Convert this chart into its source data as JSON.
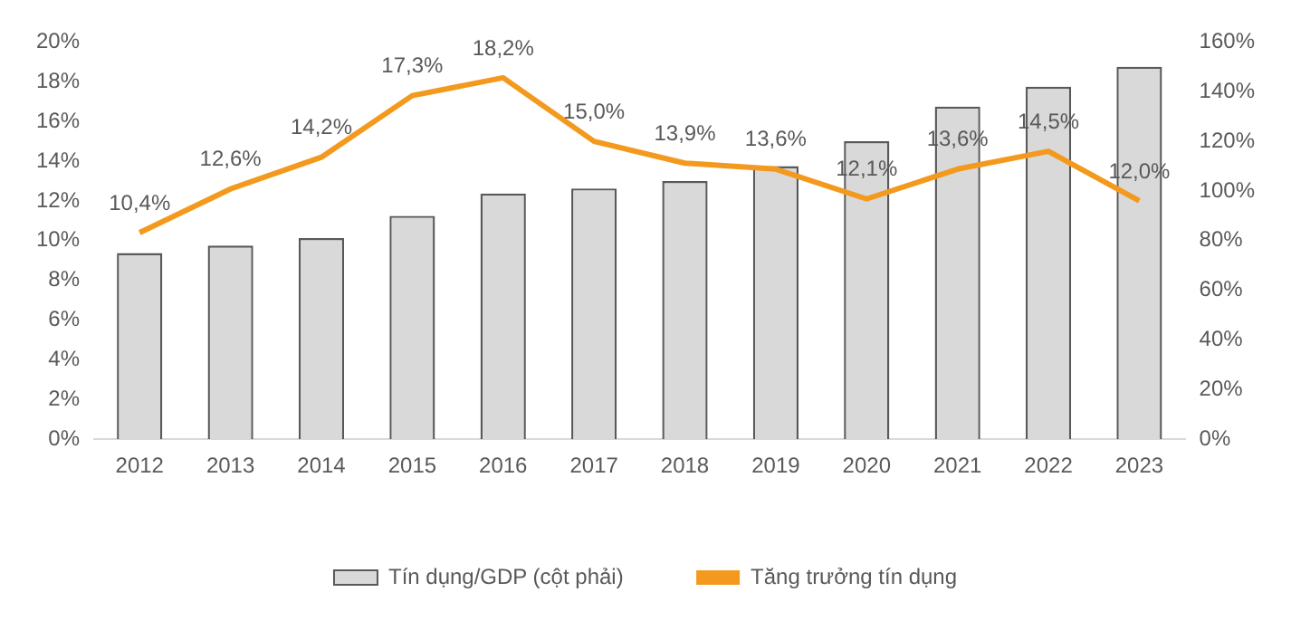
{
  "chart_data": {
    "type": "bar",
    "categories": [
      "2012",
      "2013",
      "2014",
      "2015",
      "2016",
      "2017",
      "2018",
      "2019",
      "2020",
      "2021",
      "2022",
      "2023"
    ],
    "series": [
      {
        "name": "Tín dụng/GDP (cột phải)",
        "axis": "y2",
        "color": "#d9d9d9",
        "values": [
          75,
          78,
          81,
          90,
          99,
          101,
          104,
          110,
          120,
          134,
          142,
          150
        ]
      },
      {
        "name": "Tăng trưởng tín dụng",
        "type": "line",
        "color": "#f39a1e",
        "values": [
          10.4,
          12.6,
          14.2,
          17.3,
          18.2,
          15.0,
          13.9,
          13.6,
          12.1,
          13.6,
          14.5,
          12.0
        ],
        "value_labels": [
          "10,4%",
          "12,6%",
          "14,2%",
          "17,3%",
          "18,2%",
          "15,0%",
          "13,9%",
          "13,6%",
          "12,1%",
          "13,6%",
          "14,5%",
          "12,0%"
        ]
      }
    ],
    "ylim": [
      0,
      20
    ],
    "yticks": [
      {
        "value": 0,
        "label": "0%"
      },
      {
        "value": 2,
        "label": "2%"
      },
      {
        "value": 4,
        "label": "4%"
      },
      {
        "value": 6,
        "label": "6%"
      },
      {
        "value": 8,
        "label": "8%"
      },
      {
        "value": 10,
        "label": "10%"
      },
      {
        "value": 12,
        "label": "12%"
      },
      {
        "value": 14,
        "label": "14%"
      },
      {
        "value": 16,
        "label": "16%"
      },
      {
        "value": 18,
        "label": "18%"
      },
      {
        "value": 20,
        "label": "20%"
      }
    ],
    "y2lim": [
      0,
      160
    ],
    "y2ticks": [
      {
        "value": 0,
        "label": "0%"
      },
      {
        "value": 20,
        "label": "20%"
      },
      {
        "value": 40,
        "label": "40%"
      },
      {
        "value": 60,
        "label": "60%"
      },
      {
        "value": 80,
        "label": "80%"
      },
      {
        "value": 100,
        "label": "100%"
      },
      {
        "value": 120,
        "label": "120%"
      },
      {
        "value": 140,
        "label": "140%"
      },
      {
        "value": 160,
        "label": "160%"
      }
    ],
    "grid": false,
    "legend": "bottom",
    "marker": "none"
  }
}
